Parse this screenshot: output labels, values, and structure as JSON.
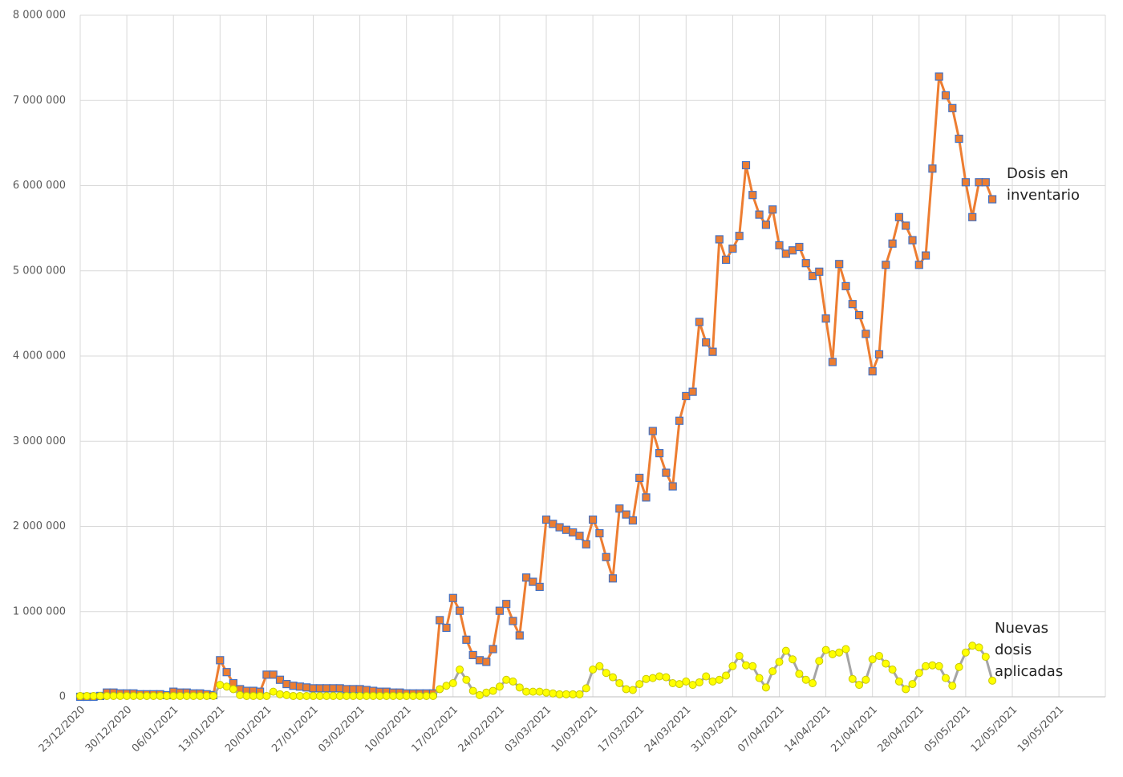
{
  "chart_data": {
    "type": "line",
    "categories": [
      "23/12/2020",
      null,
      null,
      null,
      null,
      null,
      null,
      "30/12/2020",
      null,
      null,
      null,
      null,
      null,
      null,
      "06/01/2021",
      null,
      null,
      null,
      null,
      null,
      null,
      "13/01/2021",
      null,
      null,
      null,
      null,
      null,
      null,
      "20/01/2021",
      null,
      null,
      null,
      null,
      null,
      null,
      "27/01/2021",
      null,
      null,
      null,
      null,
      null,
      null,
      "03/02/2021",
      null,
      null,
      null,
      null,
      null,
      null,
      "10/02/2021",
      null,
      null,
      null,
      null,
      null,
      null,
      "17/02/2021",
      null,
      null,
      null,
      null,
      null,
      null,
      "24/02/2021",
      null,
      null,
      null,
      null,
      null,
      null,
      "03/03/2021",
      null,
      null,
      null,
      null,
      null,
      null,
      "10/03/2021",
      null,
      null,
      null,
      null,
      null,
      null,
      "17/03/2021",
      null,
      null,
      null,
      null,
      null,
      null,
      "24/03/2021",
      null,
      null,
      null,
      null,
      null,
      null,
      "31/03/2021",
      null,
      null,
      null,
      null,
      null,
      null,
      "07/04/2021",
      null,
      null,
      null,
      null,
      null,
      null,
      "14/04/2021",
      null,
      null,
      null,
      null,
      null,
      null,
      "21/04/2021",
      null,
      null,
      null,
      null,
      null,
      null,
      "28/04/2021",
      null,
      null,
      null,
      null,
      null,
      null,
      "05/05/2021",
      null,
      null,
      null,
      null,
      null,
      null,
      "12/05/2021",
      null,
      null,
      null,
      null,
      null,
      null,
      "19/05/2021"
    ],
    "series": [
      {
        "name": "Dosis en inventario",
        "color": "#ed7d31",
        "marker_color": "#ed7d31",
        "marker_edge": "#4472c4",
        "marker": "square",
        "values": [
          0,
          0,
          0,
          10000,
          50000,
          50000,
          40000,
          40000,
          40000,
          30000,
          30000,
          30000,
          30000,
          20000,
          60000,
          50000,
          50000,
          40000,
          40000,
          30000,
          20000,
          430000,
          290000,
          160000,
          90000,
          70000,
          70000,
          60000,
          260000,
          260000,
          200000,
          150000,
          130000,
          120000,
          110000,
          100000,
          100000,
          100000,
          100000,
          100000,
          90000,
          90000,
          90000,
          80000,
          70000,
          60000,
          60000,
          50000,
          50000,
          40000,
          40000,
          40000,
          40000,
          40000,
          900000,
          810000,
          1160000,
          1010000,
          670000,
          490000,
          430000,
          410000,
          560000,
          1010000,
          1090000,
          890000,
          720000,
          1400000,
          1350000,
          1290000,
          2080000,
          2030000,
          1990000,
          1960000,
          1930000,
          1890000,
          1790000,
          2080000,
          1920000,
          1640000,
          1390000,
          2210000,
          2140000,
          2070000,
          2570000,
          2340000,
          3120000,
          2860000,
          2630000,
          2470000,
          3240000,
          3530000,
          3580000,
          4400000,
          4160000,
          4050000,
          5370000,
          5130000,
          5260000,
          5410000,
          6240000,
          5890000,
          5660000,
          5540000,
          5720000,
          5300000,
          5200000,
          5240000,
          5280000,
          5090000,
          4940000,
          4990000,
          4440000,
          3930000,
          5080000,
          4820000,
          4610000,
          4480000,
          4260000,
          3820000,
          4020000,
          5070000,
          5320000,
          5630000,
          5530000,
          5360000,
          5070000,
          5180000,
          6200000,
          7280000,
          7060000,
          6910000,
          6550000,
          6040000,
          5630000,
          6040000,
          6040000,
          5840000,
          null,
          null,
          null,
          null,
          null,
          null,
          null,
          null,
          null,
          null
        ]
      },
      {
        "name": "Nuevas dosis aplicadas",
        "color": "#a5a5a5",
        "marker_color": "#ffff00",
        "marker_edge": "#c8c800",
        "marker": "circle",
        "values": [
          10000,
          10000,
          10000,
          10000,
          10000,
          10000,
          10000,
          10000,
          10000,
          10000,
          10000,
          10000,
          10000,
          10000,
          10000,
          10000,
          10000,
          10000,
          10000,
          10000,
          10000,
          140000,
          120000,
          90000,
          20000,
          10000,
          10000,
          10000,
          10000,
          60000,
          30000,
          20000,
          10000,
          10000,
          10000,
          10000,
          10000,
          10000,
          10000,
          10000,
          10000,
          10000,
          10000,
          10000,
          10000,
          10000,
          10000,
          10000,
          10000,
          10000,
          10000,
          10000,
          10000,
          10000,
          90000,
          130000,
          160000,
          320000,
          200000,
          70000,
          20000,
          50000,
          70000,
          120000,
          200000,
          180000,
          110000,
          60000,
          60000,
          60000,
          50000,
          40000,
          30000,
          30000,
          30000,
          30000,
          100000,
          320000,
          360000,
          280000,
          230000,
          160000,
          90000,
          80000,
          150000,
          210000,
          220000,
          240000,
          230000,
          160000,
          150000,
          180000,
          140000,
          170000,
          240000,
          180000,
          200000,
          250000,
          360000,
          480000,
          370000,
          360000,
          220000,
          110000,
          300000,
          410000,
          540000,
          440000,
          270000,
          200000,
          160000,
          420000,
          550000,
          500000,
          520000,
          560000,
          210000,
          140000,
          200000,
          440000,
          480000,
          390000,
          320000,
          180000,
          90000,
          150000,
          280000,
          360000,
          370000,
          360000,
          220000,
          130000,
          350000,
          520000,
          600000,
          580000,
          470000,
          190000,
          null,
          null,
          null,
          null,
          null,
          null,
          null,
          null,
          null,
          null
        ]
      }
    ],
    "ylim": [
      0,
      8000000
    ],
    "yticks": [
      0,
      {
        "value": 1000000,
        "label": "1 000 000"
      },
      {
        "value": 2000000,
        "label": "2 000 000"
      },
      {
        "value": 3000000,
        "label": "3 000 000"
      },
      {
        "value": 4000000,
        "label": "4 000 000"
      },
      {
        "value": 5000000,
        "label": "5 000 000"
      },
      {
        "value": 6000000,
        "label": "6 000 000"
      },
      {
        "value": 7000000,
        "label": "7 000 000"
      },
      {
        "value": 8000000,
        "label": "8 000 000"
      }
    ],
    "grid": true
  }
}
